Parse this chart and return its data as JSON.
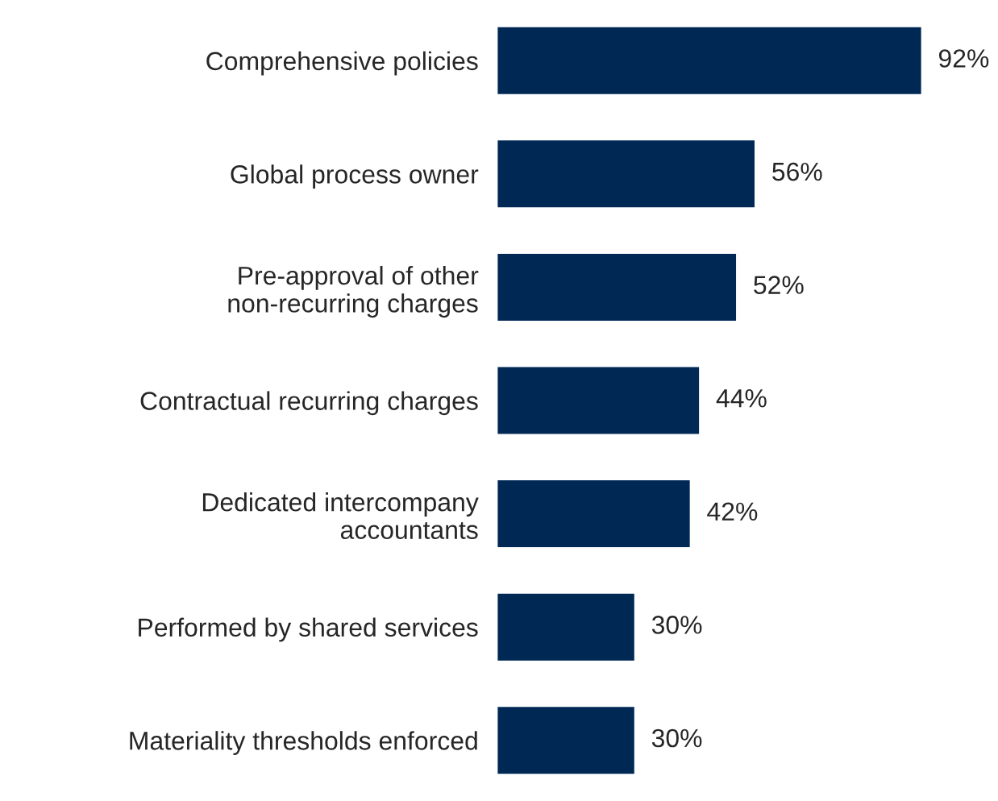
{
  "chart_data": {
    "type": "bar",
    "orientation": "horizontal",
    "categories": [
      "Comprehensive policies",
      "Global process owner",
      "Pre-approval of other\nnon-recurring charges",
      "Contractual recurring charges",
      "Dedicated intercompany\naccountants",
      "Performed by shared services",
      "Materiality thresholds enforced"
    ],
    "values": [
      92,
      56,
      52,
      44,
      42,
      30,
      30
    ],
    "value_labels": [
      "92%",
      "56%",
      "52%",
      "44%",
      "42%",
      "30%",
      "30%"
    ],
    "color": "#002855"
  }
}
